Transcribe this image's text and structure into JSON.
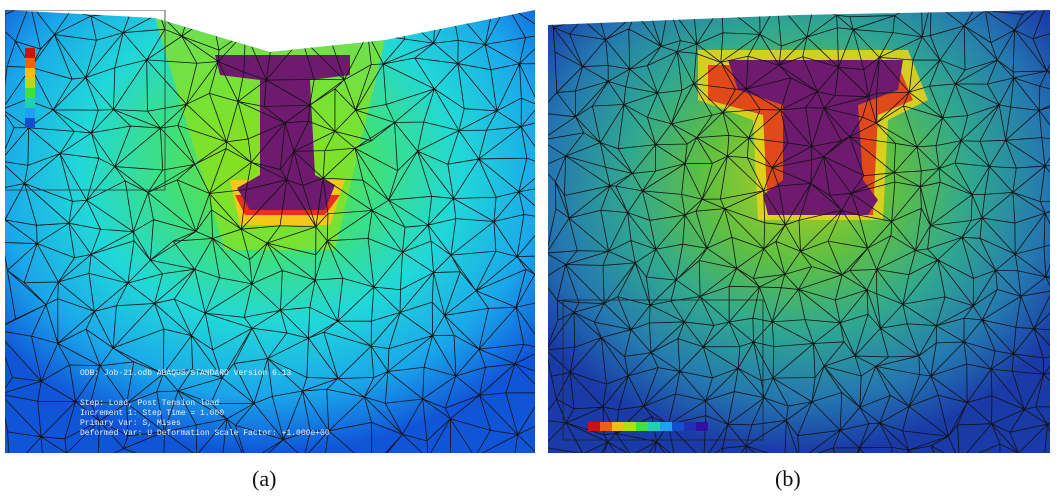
{
  "figure": {
    "panels": [
      {
        "caption": "(a)",
        "notes": [
          "ODB: Job-21.odb    ABAQUS/STANDARD Version 6.13",
          "Step: Load, Post Tension load",
          "Increment 1: Step Time = 1.000",
          "Primary Var: S, Mises",
          "Deformed Var: U  Deformation Scale Factor: +1.000e+00"
        ]
      },
      {
        "caption": "(b)"
      }
    ]
  }
}
